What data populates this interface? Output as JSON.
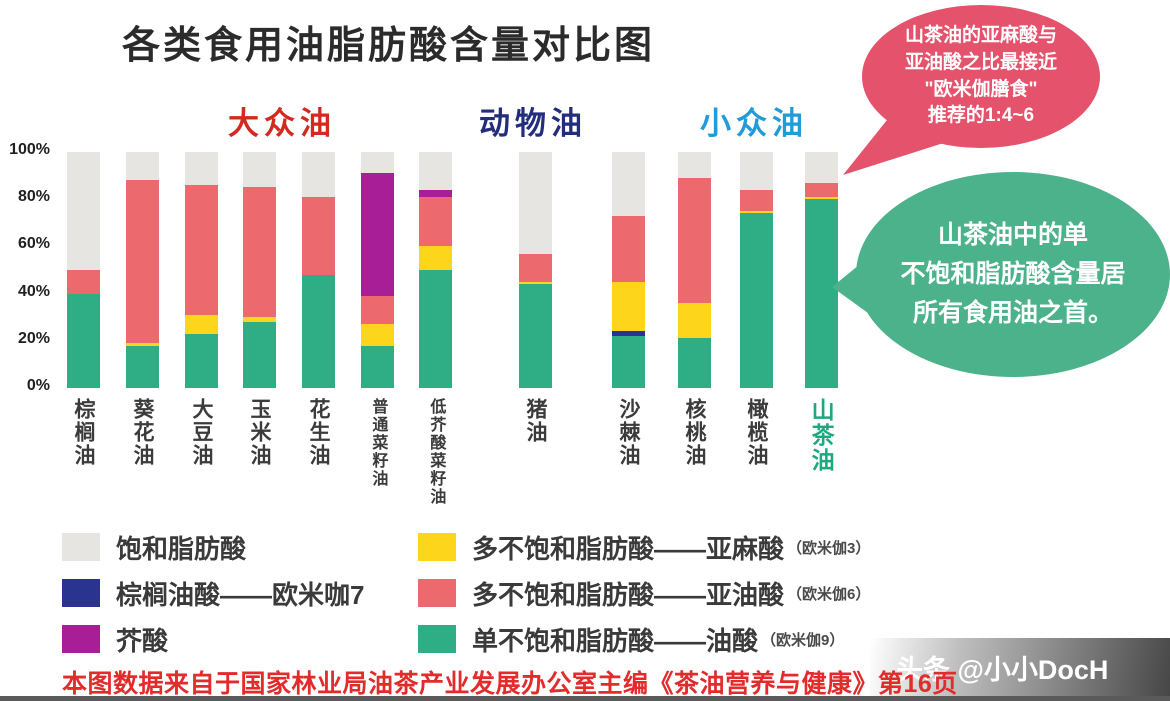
{
  "title": "各类食用油脂肪酸含量对比图",
  "groups": [
    {
      "label": "大众油",
      "color": "#d32a20"
    },
    {
      "label": "动物油",
      "color": "#232d7e"
    },
    {
      "label": "小众油",
      "color": "#1f9cd9"
    }
  ],
  "y_axis": {
    "ticks": [
      "100%",
      "80%",
      "60%",
      "40%",
      "20%",
      "0%"
    ]
  },
  "colors": {
    "saturated": "#e6e5e1",
    "palmitoleic": "#2b3390",
    "erucic": "#a81e96",
    "linolenic": "#fdd61c",
    "linoleic": "#ec6a6d",
    "oleic": "#2fae85"
  },
  "highlight_category": "山茶油",
  "highlight_color": "#1ea87d",
  "chart_data": {
    "type": "bar",
    "subtype": "stacked_percent",
    "title": "各类食用油脂肪酸含量对比图",
    "ylim": [
      0,
      100
    ],
    "unit": "%",
    "grid": false,
    "categories": [
      "棕榈油",
      "葵花油",
      "大豆油",
      "玉米油",
      "花生油",
      "普通菜籽油",
      "低芥酸菜籽油",
      "猪油",
      "沙棘油",
      "核桃油",
      "橄榄油",
      "山茶油"
    ],
    "category_groups": [
      "大众油",
      "大众油",
      "大众油",
      "大众油",
      "大众油",
      "大众油",
      "大众油",
      "动物油",
      "小众油",
      "小众油",
      "小众油",
      "小众油"
    ],
    "series": [
      {
        "name": "单不饱和脂肪酸——油酸（欧米伽9）",
        "color_key": "oleic",
        "values": [
          40,
          18,
          23,
          28,
          48,
          18,
          50,
          44,
          22,
          21,
          74,
          80
        ]
      },
      {
        "name": "棕榈油酸——欧米咖7",
        "color_key": "palmitoleic",
        "values": [
          0,
          0,
          0,
          0,
          0,
          0,
          0,
          0,
          2,
          0,
          0,
          0
        ]
      },
      {
        "name": "多不饱和脂肪酸——亚麻酸（欧米伽3）",
        "color_key": "linolenic",
        "values": [
          0,
          1,
          8,
          2,
          0,
          9,
          10,
          1,
          21,
          15,
          1,
          1
        ]
      },
      {
        "name": "多不饱和脂肪酸——亚油酸（欧米伽6）",
        "color_key": "linoleic",
        "values": [
          10,
          69,
          55,
          55,
          33,
          12,
          21,
          12,
          28,
          53,
          9,
          6
        ]
      },
      {
        "name": "芥酸",
        "color_key": "erucic",
        "values": [
          0,
          0,
          0,
          0,
          0,
          52,
          3,
          0,
          0,
          0,
          0,
          0
        ]
      },
      {
        "name": "饱和脂肪酸",
        "color_key": "saturated",
        "values": [
          50,
          12,
          14,
          15,
          19,
          9,
          16,
          43,
          27,
          11,
          16,
          13
        ]
      }
    ]
  },
  "legend": {
    "items": [
      {
        "label": "饱和脂肪酸",
        "suffix": "",
        "color_key": "saturated"
      },
      {
        "label": "棕榈油酸——欧米咖7",
        "suffix": "",
        "color_key": "palmitoleic"
      },
      {
        "label": "芥酸",
        "suffix": "",
        "color_key": "erucic"
      },
      {
        "label": "多不饱和脂肪酸——亚麻酸",
        "suffix": "（欧米伽3）",
        "color_key": "linolenic"
      },
      {
        "label": "多不饱和脂肪酸——亚油酸",
        "suffix": "（欧米伽6）",
        "color_key": "linoleic"
      },
      {
        "label": "单不饱和脂肪酸——油酸",
        "suffix": "（欧米伽9）",
        "color_key": "oleic"
      }
    ]
  },
  "callouts": {
    "red_bubble": {
      "text": "山茶油的亚麻酸与\n亚油酸之比最接近\n\"欧米伽膳食\"\n推荐的1:4~6",
      "color": "#e5526b"
    },
    "green_bubble": {
      "text": "山茶油中的单\n不饱和脂肪酸含量居\n所有食用油之首。",
      "color": "#4cb28c"
    }
  },
  "footer": {
    "source": "本图数据来自于国家林业局油茶产业发展办公室主编《茶油营养与健康》第16页",
    "watermark": "头条 @小小DocH"
  }
}
